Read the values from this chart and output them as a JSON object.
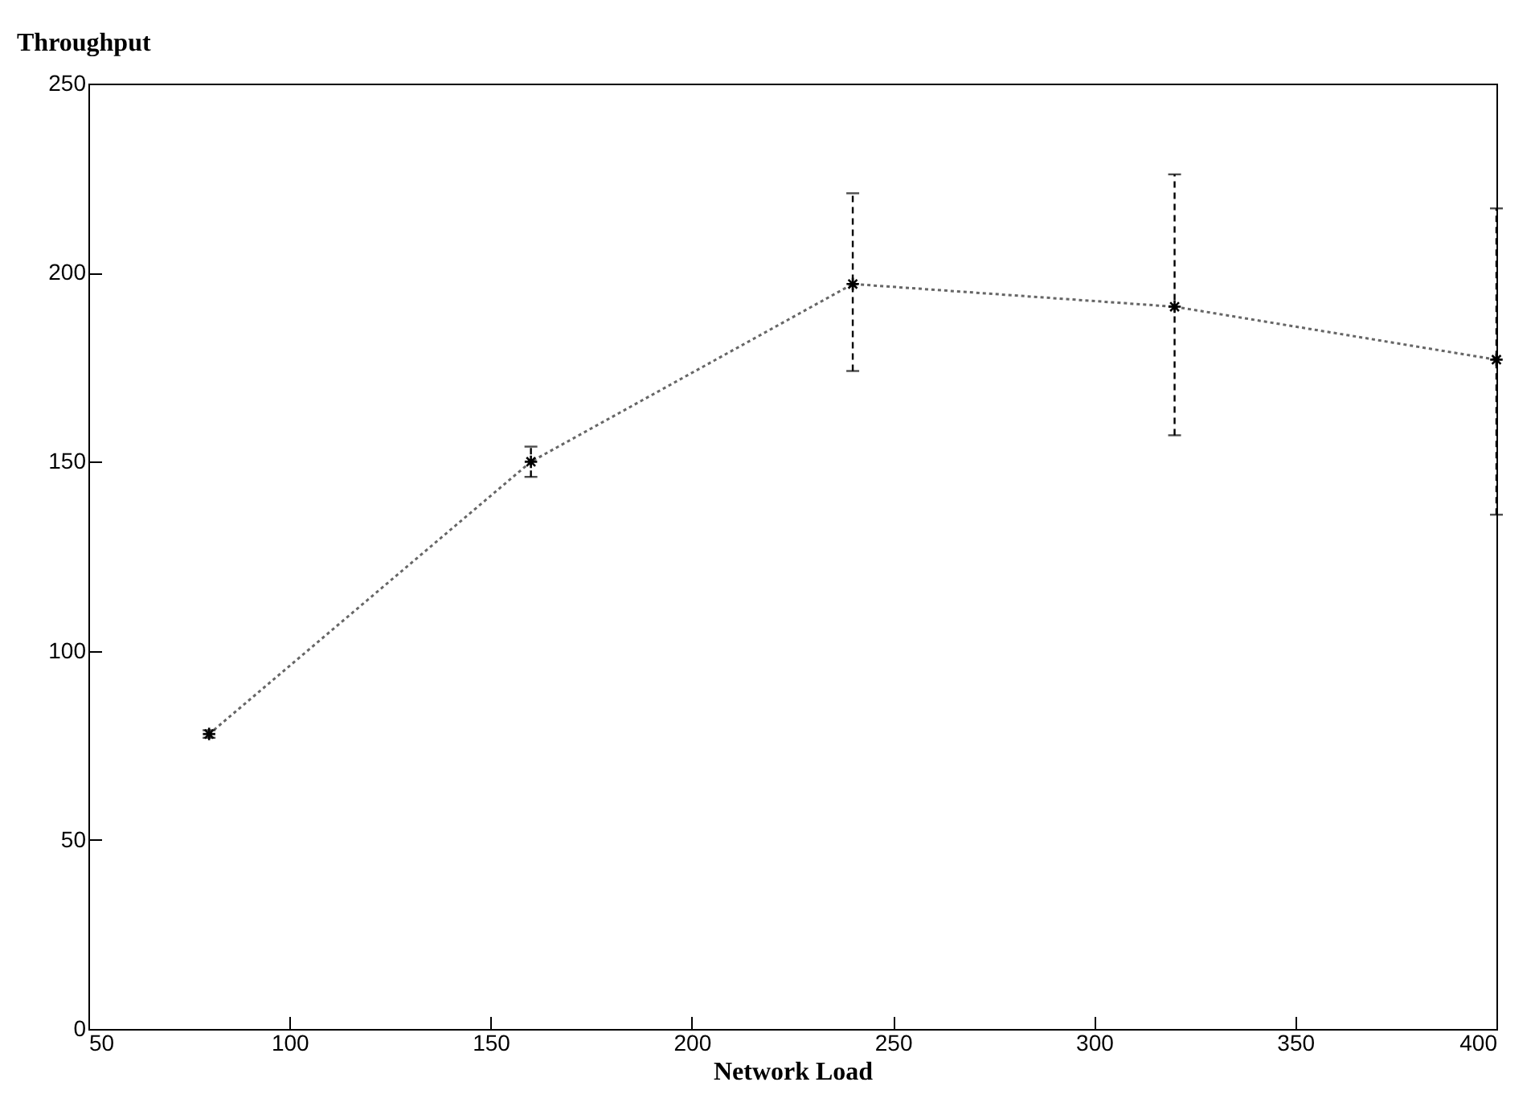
{
  "chart_data": {
    "type": "line",
    "ylabel": "Throughput",
    "xlabel": "Network Load",
    "x": [
      80,
      160,
      240,
      320,
      400
    ],
    "series": [
      {
        "color": "#666666",
        "values": [
          78,
          150,
          197,
          191,
          177
        ],
        "errors": [
          1,
          4,
          [
            174,
            221
          ],
          [
            157,
            226
          ],
          [
            136,
            217
          ]
        ]
      }
    ],
    "xlim": [
      50,
      400
    ],
    "xticks": [
      50,
      100,
      150,
      200,
      250,
      300,
      350,
      400
    ],
    "ylim": [
      0,
      250
    ],
    "yticks": [
      0,
      50,
      100,
      150,
      200,
      250
    ],
    "marker": "cross",
    "line_style": "dotted",
    "grid": false
  }
}
